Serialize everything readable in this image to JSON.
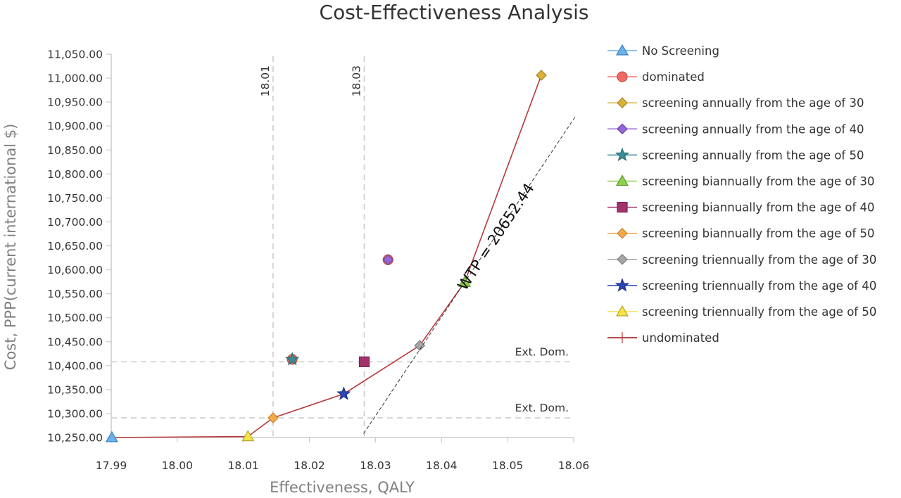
{
  "chart_data": {
    "type": "scatter",
    "title": "Cost-Effectiveness Analysis",
    "xlabel": "Effectiveness, QALY",
    "ylabel": "Cost, PPP(current international $)",
    "xlim": [
      17.99,
      18.06
    ],
    "ylim": [
      10250,
      11050
    ],
    "x_ticks": [
      {
        "value": 17.99,
        "label": "17.99"
      },
      {
        "value": 18.0,
        "label": "18.00"
      },
      {
        "value": 18.01,
        "label": "18.01"
      },
      {
        "value": 18.02,
        "label": "18.02"
      },
      {
        "value": 18.03,
        "label": "18.03"
      },
      {
        "value": 18.04,
        "label": "18.04"
      },
      {
        "value": 18.05,
        "label": "18.05"
      },
      {
        "value": 18.06,
        "label": "18.06"
      }
    ],
    "y_ticks": [
      {
        "value": 10250,
        "label": "10,250.00"
      },
      {
        "value": 10300,
        "label": "10,300.00"
      },
      {
        "value": 10350,
        "label": "10,350.00"
      },
      {
        "value": 10400,
        "label": "10,400.00"
      },
      {
        "value": 10450,
        "label": "10,450.00"
      },
      {
        "value": 10500,
        "label": "10,500.00"
      },
      {
        "value": 10550,
        "label": "10,550.00"
      },
      {
        "value": 10600,
        "label": "10,600.00"
      },
      {
        "value": 10650,
        "label": "10,650.00"
      },
      {
        "value": 10700,
        "label": "10,700.00"
      },
      {
        "value": 10750,
        "label": "10,750.00"
      },
      {
        "value": 10800,
        "label": "10,800.00"
      },
      {
        "value": 10850,
        "label": "10,850.00"
      },
      {
        "value": 10900,
        "label": "10,900.00"
      },
      {
        "value": 10950,
        "label": "10,950.00"
      },
      {
        "value": 11000,
        "label": "11,000.00"
      },
      {
        "value": 11050,
        "label": "11,050.00"
      }
    ],
    "grid": false,
    "legend_position": "right",
    "series": [
      {
        "name": "No Screening",
        "marker": "triangle",
        "color": "#6cb2e8",
        "stroke": "#3a7fc1",
        "points": [
          {
            "x": 17.9901,
            "y": 10250
          }
        ]
      },
      {
        "name": "dominated",
        "marker": "circle",
        "color": "#f26b63",
        "stroke": "#c0504d",
        "points": [
          {
            "x": 18.0174,
            "y": 10413
          },
          {
            "x": 18.0319,
            "y": 10621
          }
        ]
      },
      {
        "name": "screening annually from the age of 30",
        "marker": "diamond",
        "color": "#d9b23a",
        "stroke": "#a8862a",
        "points": [
          {
            "x": 18.0551,
            "y": 11006
          }
        ]
      },
      {
        "name": "screening annually from the age of 40",
        "marker": "diamond",
        "color": "#9467d4",
        "stroke": "#6a44a8",
        "points": [
          {
            "x": 18.0319,
            "y": 10621
          }
        ]
      },
      {
        "name": "screening annually from the age of 50",
        "marker": "star",
        "color": "#3a8f96",
        "stroke": "#2a6e74",
        "points": [
          {
            "x": 18.0174,
            "y": 10413
          }
        ]
      },
      {
        "name": "screening biannually from the age of 30",
        "marker": "triangle",
        "color": "#8fd14f",
        "stroke": "#5f9a2e",
        "points": [
          {
            "x": 18.0435,
            "y": 10574
          }
        ]
      },
      {
        "name": "screening biannually from the age of 40",
        "marker": "square",
        "color": "#a3336b",
        "stroke": "#7a2250",
        "points": [
          {
            "x": 18.0283,
            "y": 10408
          }
        ]
      },
      {
        "name": "screening biannually from the age of 50",
        "marker": "diamond",
        "color": "#f5a94a",
        "stroke": "#c9852f",
        "points": [
          {
            "x": 18.0145,
            "y": 10291
          }
        ]
      },
      {
        "name": "screening triennually from the age of 30",
        "marker": "diamond",
        "color": "#a6a6a6",
        "stroke": "#7f7f7f",
        "points": [
          {
            "x": 18.0367,
            "y": 10442
          }
        ]
      },
      {
        "name": "screening triennually from the age of 40",
        "marker": "star",
        "color": "#2c47b8",
        "stroke": "#1d2f80",
        "points": [
          {
            "x": 18.0252,
            "y": 10341
          }
        ]
      },
      {
        "name": "screening triennually from the age of 50",
        "marker": "triangle",
        "color": "#f7e24a",
        "stroke": "#b8a82e",
        "points": [
          {
            "x": 18.0107,
            "y": 10252
          }
        ]
      },
      {
        "name": "undominated",
        "marker": "line",
        "color": "#b8393a",
        "stroke": "#b8393a",
        "points": [
          {
            "x": 17.9901,
            "y": 10250
          },
          {
            "x": 18.0107,
            "y": 10252
          },
          {
            "x": 18.0145,
            "y": 10291
          },
          {
            "x": 18.0252,
            "y": 10341
          },
          {
            "x": 18.0367,
            "y": 10442
          },
          {
            "x": 18.0435,
            "y": 10574
          },
          {
            "x": 18.0551,
            "y": 11006
          }
        ]
      }
    ],
    "reference_lines": {
      "vertical": [
        {
          "x": 18.0145,
          "label": "18.01"
        },
        {
          "x": 18.0283,
          "label": "18.03"
        }
      ],
      "horizontal": [
        {
          "y": 10408,
          "label": "Ext. Dom."
        },
        {
          "y": 10291,
          "label": "Ext. Dom."
        }
      ],
      "wtp": {
        "label": "WTP = 20652.44",
        "slope": 20652.44,
        "through": {
          "x": 18.0435,
          "y": 10574
        },
        "x_range": [
          18.0282,
          18.0603
        ]
      }
    },
    "colors": {
      "reference": "#cccccc",
      "wtp_line": "#333333",
      "axis": "#cccccc"
    }
  }
}
